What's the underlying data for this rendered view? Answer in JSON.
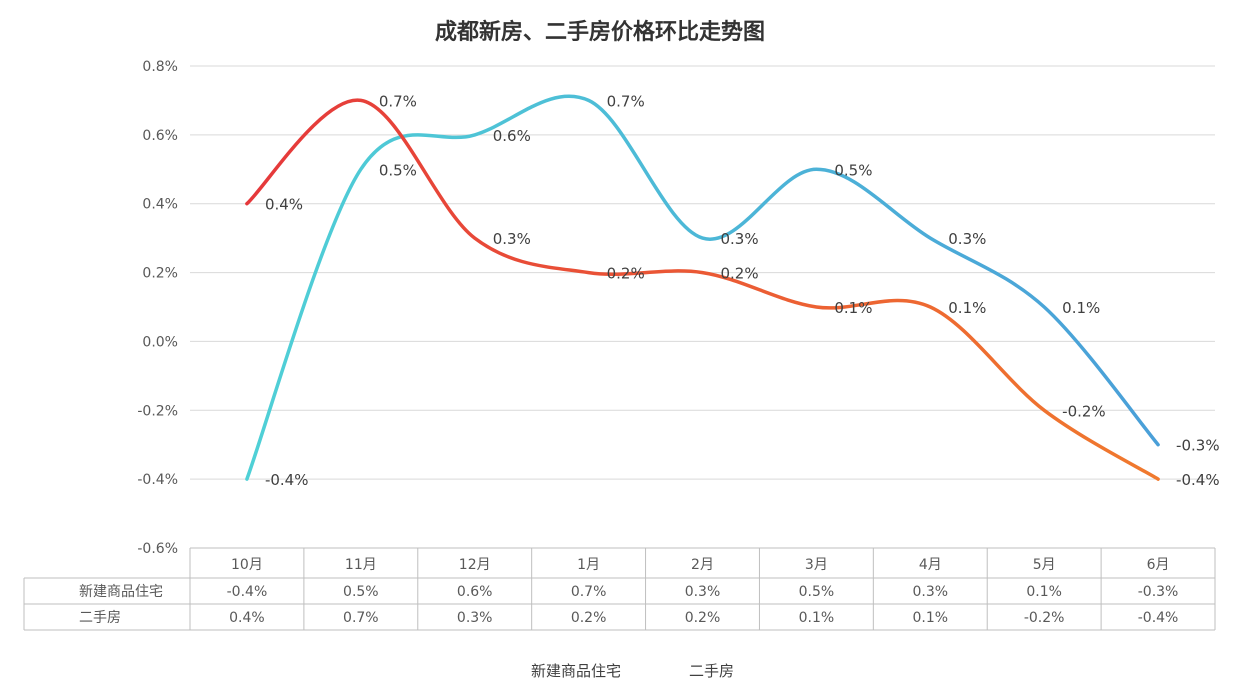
{
  "chart_data": {
    "type": "line",
    "title": "成都新房、二手房价格环比走势图",
    "categories": [
      "10月",
      "11月",
      "12月",
      "1月",
      "2月",
      "3月",
      "4月",
      "5月",
      "6月"
    ],
    "ylim": [
      -0.6,
      0.8
    ],
    "yticks": [
      0.8,
      0.6,
      0.4,
      0.2,
      0.0,
      -0.2,
      -0.4,
      -0.6
    ],
    "ytick_labels": [
      "0.8%",
      "0.6%",
      "0.4%",
      "0.2%",
      "0.0%",
      "-0.2%",
      "-0.4%",
      "-0.6%"
    ],
    "grid": true,
    "legend_position": "bottom-center",
    "series": [
      {
        "name": "新建商品住宅",
        "values": [
          -0.4,
          0.5,
          0.6,
          0.7,
          0.3,
          0.5,
          0.3,
          0.1,
          -0.3
        ],
        "labels": [
          "-0.4%",
          "0.5%",
          "0.6%",
          "0.7%",
          "0.3%",
          "0.5%",
          "0.3%",
          "0.1%",
          "-0.3%"
        ],
        "gradient": [
          "#4fd0d6",
          "#4a9fd8"
        ]
      },
      {
        "name": "二手房",
        "values": [
          0.4,
          0.7,
          0.3,
          0.2,
          0.2,
          0.1,
          0.1,
          -0.2,
          -0.4
        ],
        "labels": [
          "0.4%",
          "0.7%",
          "0.3%",
          "0.2%",
          "0.2%",
          "0.1%",
          "0.1%",
          "-0.2%",
          "-0.4%"
        ],
        "gradient": [
          "#e5383b",
          "#f07a2e"
        ]
      }
    ]
  }
}
